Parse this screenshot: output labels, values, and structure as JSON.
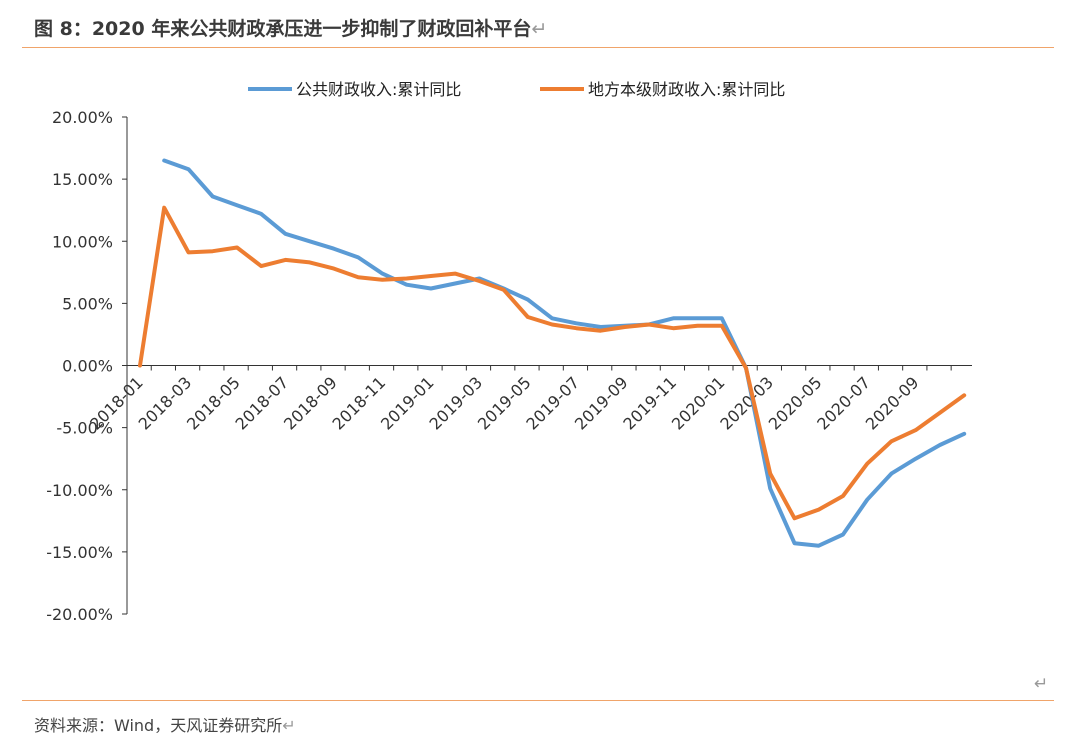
{
  "header": {
    "title": "图 8：2020 年来公共财政承压进一步抑制了财政回补平台",
    "return_glyph": "↵"
  },
  "footer": {
    "source": "资料来源：Wind，天风证券研究所",
    "return_glyph": "↵"
  },
  "colors": {
    "accent_rule": "#f0a46a",
    "series_blue": "#5b9bd5",
    "series_orange": "#ed7d31"
  },
  "chart_data": {
    "type": "line",
    "title": "",
    "xlabel": "",
    "ylabel": "",
    "legend_position": "top",
    "grid": false,
    "ylim": [
      -0.2,
      0.2
    ],
    "y_ticks": [
      "20.00%",
      "15.00%",
      "10.00%",
      "5.00%",
      "0.00%",
      "-5.00%",
      "-10.00%",
      "-15.00%",
      "-20.00%"
    ],
    "y_tick_values": [
      0.2,
      0.15,
      0.1,
      0.05,
      0.0,
      -0.05,
      -0.1,
      -0.15,
      -0.2
    ],
    "x": [
      "2018-01",
      "2018-02",
      "2018-03",
      "2018-04",
      "2018-05",
      "2018-06",
      "2018-07",
      "2018-08",
      "2018-09",
      "2018-10",
      "2018-11",
      "2018-12",
      "2019-01",
      "2019-02",
      "2019-03",
      "2019-04",
      "2019-05",
      "2019-06",
      "2019-07",
      "2019-08",
      "2019-09",
      "2019-10",
      "2019-11",
      "2019-12",
      "2020-01",
      "2020-02",
      "2020-03",
      "2020-04",
      "2020-05",
      "2020-06",
      "2020-07",
      "2020-08",
      "2020-09",
      "2020-10"
    ],
    "x_tick_labels": [
      "2018-01",
      "2018-03",
      "2018-05",
      "2018-07",
      "2018-09",
      "2018-11",
      "2019-01",
      "2019-03",
      "2019-05",
      "2019-07",
      "2019-09",
      "2019-11",
      "2020-01",
      "2020-03",
      "2020-05",
      "2020-07",
      "2020-09"
    ],
    "series": [
      {
        "name": "公共财政收入:累计同比",
        "color": "#5b9bd5",
        "x": [
          "2018-02",
          "2018-03",
          "2018-04",
          "2018-05",
          "2018-06",
          "2018-07",
          "2018-08",
          "2018-09",
          "2018-10",
          "2018-11",
          "2018-12",
          "2019-01",
          "2019-02",
          "2019-03",
          "2019-04",
          "2019-05",
          "2019-06",
          "2019-07",
          "2019-08",
          "2019-09",
          "2019-10",
          "2019-11",
          "2019-12",
          "2020-01",
          "2020-02",
          "2020-03",
          "2020-04",
          "2020-05",
          "2020-06",
          "2020-07",
          "2020-08",
          "2020-09",
          "2020-10",
          "2020-11"
        ],
        "values": [
          0.165,
          0.158,
          0.136,
          0.129,
          0.122,
          0.106,
          0.1,
          0.094,
          0.087,
          0.074,
          0.065,
          0.062,
          0.066,
          0.07,
          0.062,
          0.053,
          0.038,
          0.034,
          0.031,
          0.032,
          0.033,
          0.038,
          0.038,
          0.038,
          -0.002,
          -0.099,
          -0.143,
          -0.145,
          -0.136,
          -0.108,
          -0.087,
          -0.075,
          -0.064,
          -0.055
        ]
      },
      {
        "name": "地方本级财政收入:累计同比",
        "color": "#ed7d31",
        "x": [
          "2018-01",
          "2018-02",
          "2018-03",
          "2018-04",
          "2018-05",
          "2018-06",
          "2018-07",
          "2018-08",
          "2018-09",
          "2018-10",
          "2018-11",
          "2018-12",
          "2019-01",
          "2019-02",
          "2019-03",
          "2019-04",
          "2019-05",
          "2019-06",
          "2019-07",
          "2019-08",
          "2019-09",
          "2019-10",
          "2019-11",
          "2019-12",
          "2020-01",
          "2020-02",
          "2020-03",
          "2020-04",
          "2020-05",
          "2020-06",
          "2020-07",
          "2020-08",
          "2020-09",
          "2020-10",
          "2020-11"
        ],
        "values": [
          0.0,
          0.127,
          0.091,
          0.092,
          0.095,
          0.08,
          0.085,
          0.083,
          0.078,
          0.071,
          0.069,
          0.07,
          0.072,
          0.074,
          0.068,
          0.061,
          0.039,
          0.033,
          0.03,
          0.028,
          0.031,
          0.033,
          0.03,
          0.032,
          0.032,
          -0.002,
          -0.087,
          -0.123,
          -0.116,
          -0.105,
          -0.079,
          -0.061,
          -0.052,
          -0.038,
          -0.024
        ]
      }
    ]
  }
}
